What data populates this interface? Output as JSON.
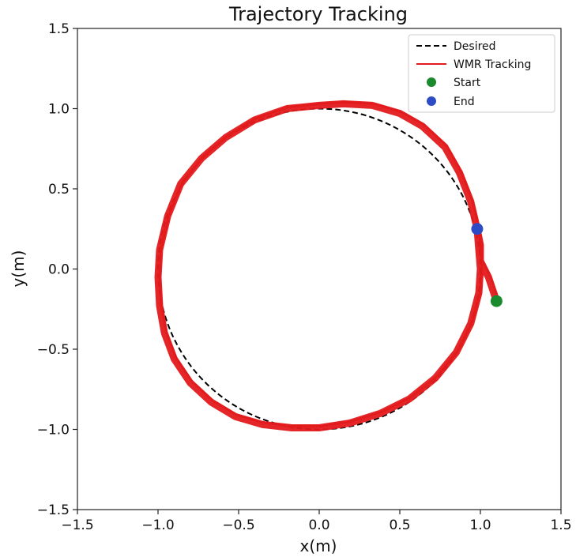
{
  "chart_data": {
    "type": "line",
    "title": "Trajectory Tracking",
    "xlabel": "x(m)",
    "ylabel": "y(m)",
    "xlim": [
      -1.5,
      1.5
    ],
    "ylim": [
      -1.5,
      1.5
    ],
    "xticks": [
      -1.5,
      -1.0,
      -0.5,
      0.0,
      0.5,
      1.0,
      1.5
    ],
    "yticks": [
      -1.5,
      -1.0,
      -0.5,
      0.0,
      0.5,
      1.0,
      1.5
    ],
    "xtick_labels": [
      "−1.5",
      "−1.0",
      "−0.5",
      "0.0",
      "0.5",
      "1.0",
      "1.5"
    ],
    "ytick_labels": [
      "−1.5",
      "−1.0",
      "−0.5",
      "0.0",
      "0.5",
      "1.0",
      "1.5"
    ],
    "grid": false,
    "legend_position": "top-right",
    "series": [
      {
        "name": "Desired",
        "style": "dashed",
        "color": "#000000",
        "shape": "circle",
        "center": [
          0.0,
          0.0
        ],
        "radius": 1.0
      },
      {
        "name": "WMR Tracking",
        "style": "solid",
        "color": "#e31a1c",
        "x": [
          1.1,
          1.05,
          1.0,
          1.0,
          0.98,
          0.94,
          0.87,
          0.78,
          0.64,
          0.5,
          0.33,
          0.15,
          0.0,
          -0.2,
          -0.4,
          -0.58,
          -0.73,
          -0.86,
          -0.94,
          -0.99,
          -1.0,
          -0.99,
          -0.96,
          -0.9,
          -0.8,
          -0.67,
          -0.52,
          -0.35,
          -0.17,
          0.0,
          0.19,
          0.38,
          0.56,
          0.72,
          0.85,
          0.94,
          0.99,
          1.0,
          0.99,
          0.98
        ],
        "y": [
          -0.2,
          -0.05,
          0.05,
          0.15,
          0.25,
          0.42,
          0.6,
          0.76,
          0.89,
          0.97,
          1.02,
          1.03,
          1.02,
          1.0,
          0.93,
          0.82,
          0.69,
          0.53,
          0.33,
          0.12,
          -0.05,
          -0.23,
          -0.4,
          -0.56,
          -0.71,
          -0.83,
          -0.92,
          -0.97,
          -0.99,
          -0.99,
          -0.96,
          -0.9,
          -0.81,
          -0.68,
          -0.52,
          -0.34,
          -0.15,
          0.0,
          0.12,
          0.25
        ]
      }
    ],
    "markers": [
      {
        "name": "Start",
        "x": 1.1,
        "y": -0.2,
        "color": "#1a8a2e"
      },
      {
        "name": "End",
        "x": 0.98,
        "y": 0.25,
        "color": "#2e4bc6"
      }
    ]
  }
}
